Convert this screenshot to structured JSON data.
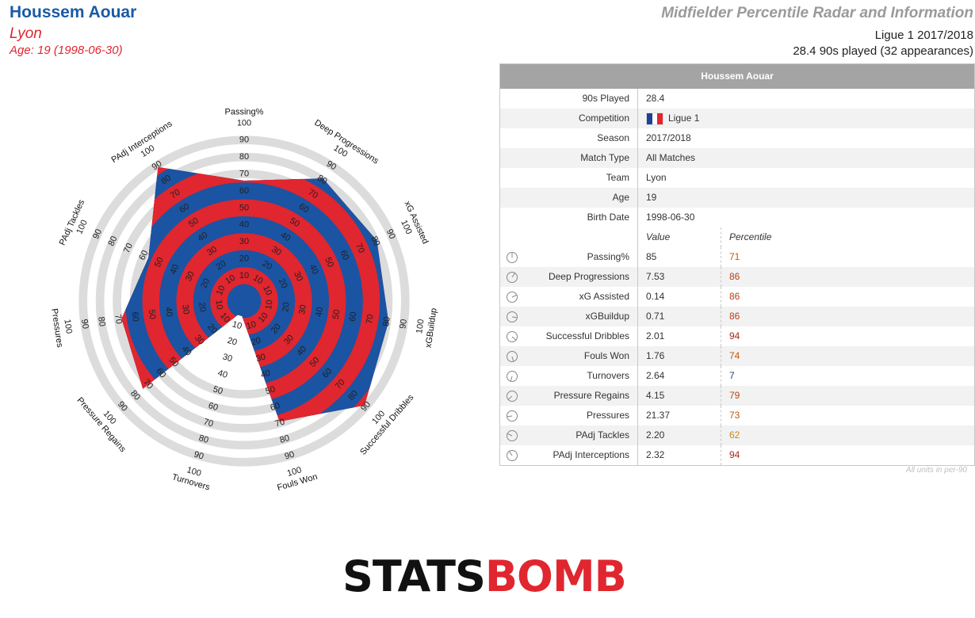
{
  "header": {
    "player_name": "Houssem Aouar",
    "team": "Lyon",
    "age_line": "Age: 19 (1998-06-30)",
    "title": "Midfielder Percentile Radar and Information",
    "competition_line": "Ligue 1 2017/2018",
    "played_line": "28.4 90s played (32 appearances)"
  },
  "colors": {
    "blue": "#1a54a3",
    "red": "#e0262f",
    "ring_grey": "#dcdcdc",
    "title_blue": "#1a5aa6",
    "pct_orange": "#c0590f"
  },
  "chart_data": {
    "type": "radar",
    "range": [
      0,
      100
    ],
    "ring_ticks": [
      10,
      20,
      30,
      40,
      50,
      60,
      70,
      80,
      90,
      100
    ],
    "axes": [
      {
        "label": "Passing%",
        "value": 71
      },
      {
        "label": "Deep Progressions",
        "value": 86
      },
      {
        "label": "xG Assisted",
        "value": 86
      },
      {
        "label": "xGBuildup",
        "value": 86
      },
      {
        "label": "Successful Dribbles",
        "value": 94
      },
      {
        "label": "Fouls Won",
        "value": 74
      },
      {
        "label": "Turnovers",
        "value": 7
      },
      {
        "label": "Pressure Regains",
        "value": 79
      },
      {
        "label": "Pressures",
        "value": 73
      },
      {
        "label": "PAdj Tackles",
        "value": 62
      },
      {
        "label": "PAdj Interceptions",
        "value": 94
      }
    ]
  },
  "info_table": {
    "header": "Houssem Aouar",
    "rows": [
      {
        "label": "90s Played",
        "value": "28.4"
      },
      {
        "label": "Competition",
        "value": "Ligue 1"
      },
      {
        "label": "Season",
        "value": "2017/2018"
      },
      {
        "label": "Match Type",
        "value": "All Matches"
      },
      {
        "label": "Team",
        "value": "Lyon"
      },
      {
        "label": "Age",
        "value": "19"
      },
      {
        "label": "Birth Date",
        "value": "1998-06-30"
      }
    ],
    "flag_colors": [
      "#1f3f98",
      "#ffffff",
      "#e0262f"
    ],
    "col_value": "Value",
    "col_percentile": "Percentile",
    "metrics": [
      {
        "label": "Passing%",
        "value": "85",
        "percentile": "71",
        "pct_color": "#c0590f"
      },
      {
        "label": "Deep Progressions",
        "value": "7.53",
        "percentile": "86",
        "pct_color": "#b5401a"
      },
      {
        "label": "xG Assisted",
        "value": "0.14",
        "percentile": "86",
        "pct_color": "#b5401a"
      },
      {
        "label": "xGBuildup",
        "value": "0.71",
        "percentile": "86",
        "pct_color": "#b5401a"
      },
      {
        "label": "Successful Dribbles",
        "value": "2.01",
        "percentile": "94",
        "pct_color": "#a8281c"
      },
      {
        "label": "Fouls Won",
        "value": "1.76",
        "percentile": "74",
        "pct_color": "#c0590f"
      },
      {
        "label": "Turnovers",
        "value": "2.64",
        "percentile": "7",
        "pct_color": "#2a3f6e"
      },
      {
        "label": "Pressure Regains",
        "value": "4.15",
        "percentile": "79",
        "pct_color": "#b84a14"
      },
      {
        "label": "Pressures",
        "value": "21.37",
        "percentile": "73",
        "pct_color": "#c0590f"
      },
      {
        "label": "PAdj Tackles",
        "value": "2.20",
        "percentile": "62",
        "pct_color": "#c78a1a"
      },
      {
        "label": "PAdj Interceptions",
        "value": "2.32",
        "percentile": "94",
        "pct_color": "#a8281c"
      }
    ],
    "units_note": "All units in per-90"
  },
  "logo": {
    "part1": "STATS",
    "part2": "BOMB"
  }
}
